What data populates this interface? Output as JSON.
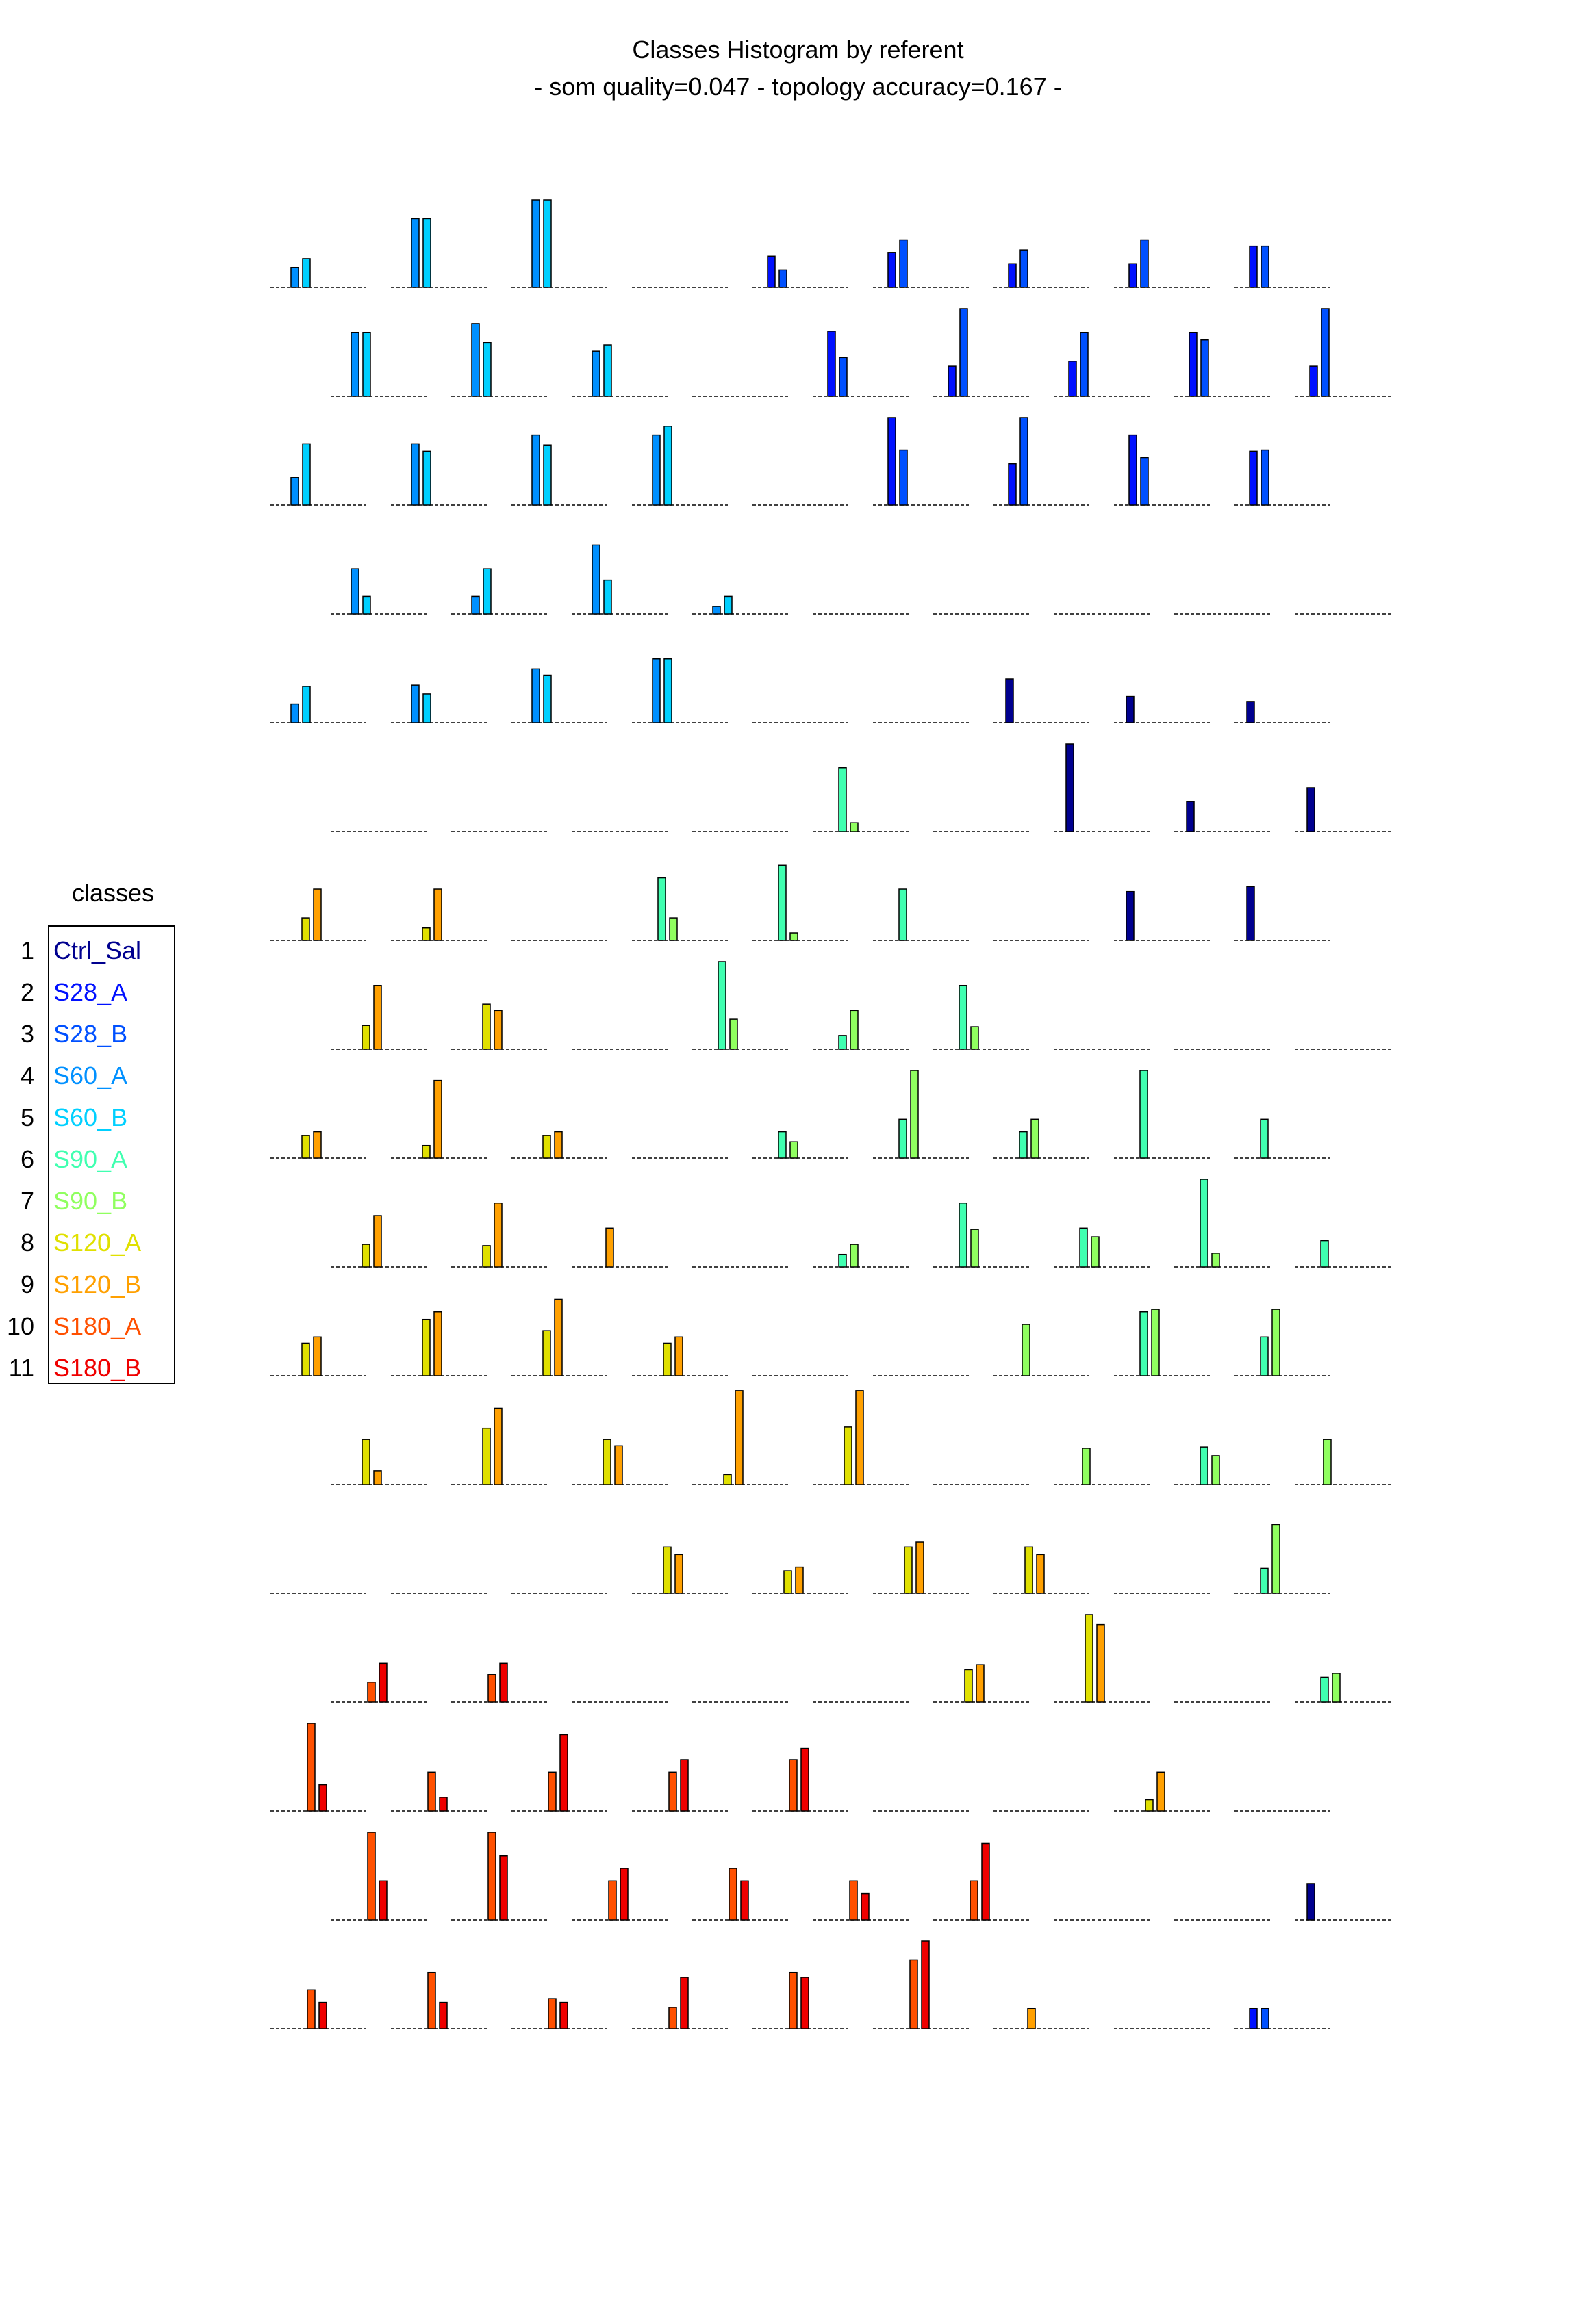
{
  "chart_data": {
    "type": "bar",
    "title": "Classes Histogram by referent",
    "subtitle": "- som quality=0.047 - topology accuracy=0.167 -",
    "legend": {
      "title": "classes",
      "placement": "left",
      "entries": [
        {
          "id": "1",
          "name": "Ctrl_Sal",
          "color": "#00008f"
        },
        {
          "id": "2",
          "name": "S28_A",
          "color": "#0010ff"
        },
        {
          "id": "3",
          "name": "S28_B",
          "color": "#0050ff"
        },
        {
          "id": "4",
          "name": "S60_A",
          "color": "#0090ff"
        },
        {
          "id": "5",
          "name": "S60_B",
          "color": "#00d0ff"
        },
        {
          "id": "6",
          "name": "S90_A",
          "color": "#40ffb0"
        },
        {
          "id": "7",
          "name": "S90_B",
          "color": "#90ff60"
        },
        {
          "id": "8",
          "name": "S120_A",
          "color": "#e0e000"
        },
        {
          "id": "9",
          "name": "S120_B",
          "color": "#ffa000"
        },
        {
          "id": "10",
          "name": "S180_A",
          "color": "#ff5000"
        },
        {
          "id": "11",
          "name": "S180_B",
          "color": "#ef0000"
        }
      ]
    },
    "axes_shown": false,
    "grid": "17 rows x 9 hexagonal-offset cells",
    "ylim": [
      0,
      7
    ],
    "series_classes": [
      "S60_A",
      "S60_B",
      "S28_A",
      "S28_B",
      "Ctrl_Sal",
      "S90_A",
      "S90_B",
      "S120_A",
      "S120_B",
      "S180_A",
      "S180_B"
    ],
    "cells": [
      [
        [
          [
            4,
            1.6
          ],
          [
            5,
            2.3
          ]
        ],
        [
          [
            4,
            5.5
          ],
          [
            5,
            5.5
          ]
        ],
        [
          [
            4,
            7
          ],
          [
            5,
            7
          ]
        ],
        [],
        [
          [
            2,
            2.5
          ],
          [
            3,
            1.4
          ]
        ],
        [
          [
            2,
            2.8
          ],
          [
            3,
            3.8
          ]
        ],
        [
          [
            2,
            1.9
          ],
          [
            3,
            3
          ]
        ],
        [
          [
            2,
            1.9
          ],
          [
            3,
            3.8
          ]
        ],
        [
          [
            2,
            3.3
          ],
          [
            3,
            3.3
          ]
        ]
      ],
      [
        [
          [
            4,
            5.1
          ],
          [
            5,
            5.1
          ]
        ],
        [
          [
            4,
            5.8
          ],
          [
            5,
            4.3
          ]
        ],
        [
          [
            4,
            3.6
          ],
          [
            5,
            4.1
          ]
        ],
        [],
        [
          [
            2,
            5.2
          ],
          [
            3,
            3.1
          ]
        ],
        [
          [
            2,
            2.4
          ],
          [
            3,
            7
          ]
        ],
        [
          [
            2,
            2.8
          ],
          [
            3,
            5.1
          ]
        ],
        [
          [
            2,
            5.1
          ],
          [
            3,
            4.5
          ]
        ],
        [
          [
            2,
            2.4
          ],
          [
            3,
            7
          ]
        ]
      ],
      [
        [
          [
            4,
            2.2
          ],
          [
            5,
            4.9
          ]
        ],
        [
          [
            4,
            4.9
          ],
          [
            5,
            4.3
          ]
        ],
        [
          [
            4,
            5.6
          ],
          [
            5,
            4.8
          ]
        ],
        [
          [
            4,
            5.6
          ],
          [
            5,
            6.3
          ]
        ],
        [],
        [
          [
            2,
            7
          ],
          [
            3,
            4.4
          ]
        ],
        [
          [
            2,
            3.3
          ],
          [
            3,
            7
          ]
        ],
        [
          [
            2,
            5.6
          ],
          [
            3,
            3.8
          ]
        ],
        [
          [
            2,
            4.3
          ],
          [
            3,
            4.4
          ]
        ]
      ],
      [
        [
          [
            4,
            3.6
          ],
          [
            5,
            1.4
          ]
        ],
        [
          [
            4,
            1.4
          ],
          [
            5,
            3.6
          ]
        ],
        [
          [
            4,
            5.5
          ],
          [
            5,
            2.7
          ]
        ],
        [
          [
            4,
            0.6
          ],
          [
            5,
            1.4
          ]
        ],
        [],
        [],
        [],
        [],
        []
      ],
      [
        [
          [
            4,
            1.5
          ],
          [
            5,
            2.9
          ]
        ],
        [
          [
            4,
            3
          ],
          [
            5,
            2.3
          ]
        ],
        [
          [
            4,
            4.3
          ],
          [
            5,
            3.8
          ]
        ],
        [
          [
            4,
            5.1
          ],
          [
            5,
            5.1
          ]
        ],
        [],
        [],
        [
          [
            1,
            3.5
          ]
        ],
        [
          [
            1,
            2.1
          ]
        ],
        [
          [
            1,
            1.7
          ]
        ]
      ],
      [
        [],
        [],
        [],
        [],
        [
          [
            6,
            5.1
          ],
          [
            7,
            0.7
          ]
        ],
        [],
        [
          [
            1,
            7
          ]
        ],
        [
          [
            1,
            2.4
          ]
        ],
        [
          [
            1,
            3.5
          ]
        ]
      ],
      [
        [
          [
            8,
            1.8
          ],
          [
            9,
            4.1
          ]
        ],
        [
          [
            8,
            1
          ],
          [
            9,
            4.1
          ]
        ],
        [],
        [
          [
            6,
            5
          ],
          [
            7,
            1.8
          ]
        ],
        [
          [
            6,
            6
          ],
          [
            7,
            0.6
          ]
        ],
        [
          [
            6,
            4.1
          ]
        ],
        [],
        [
          [
            1,
            3.9
          ]
        ],
        [
          [
            1,
            4.3
          ]
        ]
      ],
      [
        [
          [
            8,
            1.9
          ],
          [
            9,
            5.1
          ]
        ],
        [
          [
            8,
            3.6
          ],
          [
            9,
            3.1
          ]
        ],
        [],
        [
          [
            6,
            7
          ],
          [
            7,
            2.4
          ]
        ],
        [
          [
            6,
            1.1
          ],
          [
            7,
            3.1
          ]
        ],
        [
          [
            6,
            5.1
          ],
          [
            7,
            1.8
          ]
        ],
        [],
        [],
        []
      ],
      [
        [
          [
            8,
            1.8
          ],
          [
            9,
            2.1
          ]
        ],
        [
          [
            8,
            1
          ],
          [
            9,
            6.2
          ]
        ],
        [
          [
            8,
            1.8
          ],
          [
            9,
            2.1
          ]
        ],
        [],
        [
          [
            6,
            2.1
          ],
          [
            7,
            1.3
          ]
        ],
        [
          [
            6,
            3.1
          ],
          [
            7,
            7
          ]
        ],
        [
          [
            6,
            2.1
          ],
          [
            7,
            3.1
          ]
        ],
        [
          [
            6,
            7
          ]
        ],
        [
          [
            6,
            3.1
          ]
        ]
      ],
      [
        [
          [
            8,
            1.8
          ],
          [
            9,
            4.1
          ]
        ],
        [
          [
            8,
            1.7
          ],
          [
            9,
            5.1
          ]
        ],
        [
          [
            9,
            3.1
          ]
        ],
        [],
        [
          [
            6,
            1
          ],
          [
            7,
            1.8
          ]
        ],
        [
          [
            6,
            5.1
          ],
          [
            7,
            3
          ]
        ],
        [
          [
            6,
            3.1
          ],
          [
            7,
            2.4
          ]
        ],
        [
          [
            6,
            7
          ],
          [
            7,
            1.1
          ]
        ],
        [
          [
            6,
            2.1
          ]
        ]
      ],
      [
        [
          [
            8,
            2.6
          ],
          [
            9,
            3.1
          ]
        ],
        [
          [
            8,
            4.5
          ],
          [
            9,
            5.1
          ]
        ],
        [
          [
            8,
            3.6
          ],
          [
            9,
            6.1
          ]
        ],
        [
          [
            8,
            2.6
          ],
          [
            9,
            3.1
          ]
        ],
        [],
        [],
        [
          [
            7,
            4.1
          ]
        ],
        [
          [
            6,
            5.1
          ],
          [
            7,
            5.3
          ]
        ],
        [
          [
            6,
            3.1
          ],
          [
            7,
            5.3
          ]
        ]
      ],
      [
        [
          [
            8,
            3.6
          ],
          [
            9,
            1.1
          ]
        ],
        [
          [
            8,
            4.5
          ],
          [
            9,
            6.1
          ]
        ],
        [
          [
            8,
            3.6
          ],
          [
            9,
            3.1
          ]
        ],
        [
          [
            8,
            0.8
          ],
          [
            9,
            7.5
          ]
        ],
        [
          [
            8,
            4.6
          ],
          [
            9,
            7.5
          ]
        ],
        [],
        [
          [
            7,
            2.9
          ]
        ],
        [
          [
            6,
            3
          ],
          [
            7,
            2.3
          ]
        ],
        [
          [
            7,
            3.6
          ]
        ]
      ],
      [
        [],
        [],
        [],
        [
          [
            8,
            3.7
          ],
          [
            9,
            3.1
          ]
        ],
        [
          [
            8,
            1.8
          ],
          [
            9,
            2.1
          ]
        ],
        [
          [
            8,
            3.7
          ],
          [
            9,
            4.1
          ]
        ],
        [
          [
            8,
            3.7
          ],
          [
            9,
            3.1
          ]
        ],
        [],
        [
          [
            6,
            2
          ],
          [
            7,
            5.5
          ]
        ]
      ],
      [
        [
          [
            10,
            1.6
          ],
          [
            11,
            3.1
          ]
        ],
        [
          [
            10,
            2.2
          ],
          [
            11,
            3.1
          ]
        ],
        [],
        [],
        [],
        [
          [
            8,
            2.6
          ],
          [
            9,
            3
          ]
        ],
        [
          [
            8,
            7
          ],
          [
            9,
            6.2
          ]
        ],
        [],
        [
          [
            6,
            2
          ],
          [
            7,
            2.3
          ]
        ]
      ],
      [
        [
          [
            10,
            7
          ],
          [
            11,
            2.1
          ]
        ],
        [
          [
            10,
            3.1
          ],
          [
            11,
            1.1
          ]
        ],
        [
          [
            10,
            3.1
          ],
          [
            11,
            6.1
          ]
        ],
        [
          [
            10,
            3.1
          ],
          [
            11,
            4.1
          ]
        ],
        [
          [
            10,
            4.1
          ],
          [
            11,
            5
          ]
        ],
        [],
        [],
        [
          [
            8,
            0.9
          ],
          [
            9,
            3.1
          ]
        ],
        []
      ],
      [
        [
          [
            10,
            7
          ],
          [
            11,
            3.1
          ]
        ],
        [
          [
            10,
            7
          ],
          [
            11,
            5.1
          ]
        ],
        [
          [
            10,
            3.1
          ],
          [
            11,
            4.1
          ]
        ],
        [
          [
            10,
            4.1
          ],
          [
            11,
            3.1
          ]
        ],
        [
          [
            10,
            3.1
          ],
          [
            11,
            2.1
          ]
        ],
        [
          [
            10,
            3.1
          ],
          [
            11,
            6.1
          ]
        ],
        [],
        [],
        [
          [
            1,
            2.9
          ]
        ]
      ],
      [
        [
          [
            10,
            3.1
          ],
          [
            11,
            2.1
          ]
        ],
        [
          [
            10,
            4.5
          ],
          [
            11,
            2.1
          ]
        ],
        [
          [
            10,
            2.4
          ],
          [
            11,
            2.1
          ]
        ],
        [
          [
            10,
            1.7
          ],
          [
            11,
            4.1
          ]
        ],
        [
          [
            10,
            4.5
          ],
          [
            11,
            4.1
          ]
        ],
        [
          [
            10,
            5.5
          ],
          [
            11,
            7
          ]
        ],
        [
          [
            9,
            1.6
          ]
        ],
        [],
        [
          [
            2,
            1.6
          ],
          [
            3,
            1.6
          ]
        ]
      ]
    ]
  }
}
